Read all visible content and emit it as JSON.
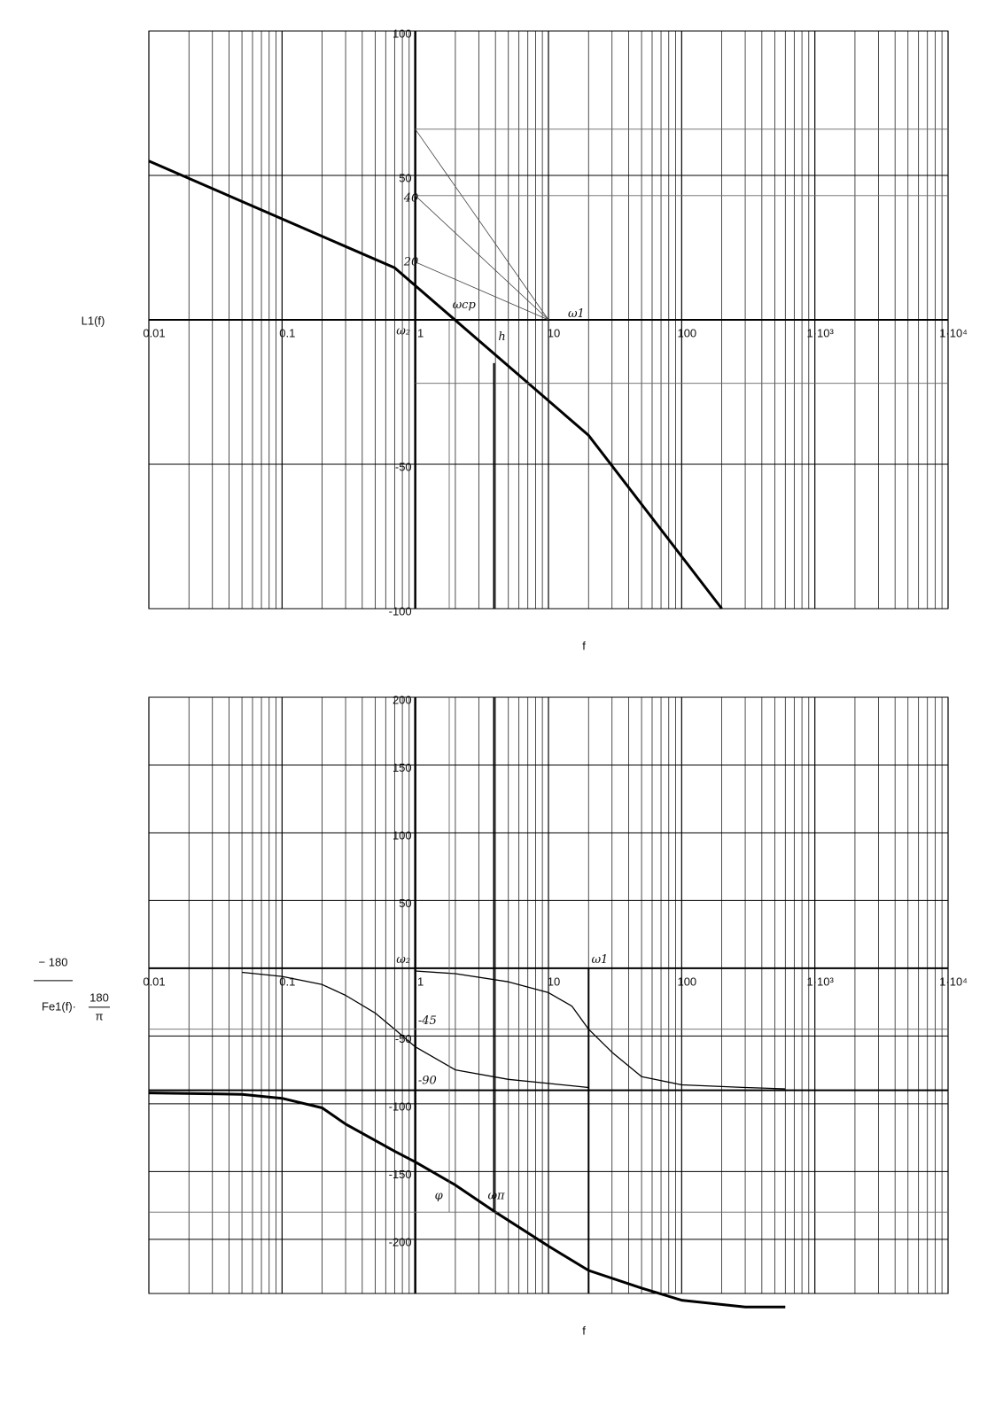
{
  "chart_data": [
    {
      "type": "line",
      "x_log": true,
      "grid": true,
      "xlim": [
        0.01,
        10000
      ],
      "ylim": [
        -100,
        100
      ],
      "xticks": [
        {
          "value": 0.01,
          "label": "0.01"
        },
        {
          "value": 0.1,
          "label": "0.1"
        },
        {
          "value": 1,
          "label": "1"
        },
        {
          "value": 10,
          "label": "10"
        },
        {
          "value": 100,
          "label": "100"
        },
        {
          "value": 1000,
          "label": "1·10³"
        },
        {
          "value": 10000,
          "label": "1·10⁴"
        }
      ],
      "yticks": [
        100,
        50,
        {
          "value": -50,
          "label": "-50"
        },
        {
          "value": -100,
          "label": "-100"
        }
      ],
      "x_label": "f",
      "y_label": [
        "L1(f)"
      ],
      "series": [
        {
          "color": "#000",
          "width": 3,
          "x": [
            0.01,
            0.7,
            20,
            200
          ],
          "values": [
            55,
            18,
            -40,
            -100
          ]
        },
        {
          "color": "#444",
          "width": 0.8,
          "x": [
            1,
            10
          ],
          "values": [
            66,
            0
          ]
        },
        {
          "color": "#444",
          "width": 0.8,
          "x": [
            1,
            10
          ],
          "values": [
            43,
            0
          ]
        },
        {
          "color": "#444",
          "width": 0.8,
          "x": [
            1,
            10
          ],
          "values": [
            20,
            0
          ]
        },
        {
          "color": "#666",
          "width": 0.8,
          "x": [
            1,
            10000
          ],
          "values": [
            66,
            66
          ]
        },
        {
          "color": "#666",
          "width": 0.8,
          "x": [
            1,
            10000
          ],
          "values": [
            43,
            43
          ]
        },
        {
          "color": "#666",
          "width": 0.8,
          "x": [
            1,
            10000
          ],
          "values": [
            -22,
            -22
          ]
        },
        {
          "color": "#555",
          "width": 0.8,
          "x": [
            1.8,
            1.8
          ],
          "values": [
            0,
            -100
          ]
        },
        {
          "color": "#000",
          "width": 2,
          "x": [
            3.9,
            3.9
          ],
          "values": [
            -15,
            -100
          ]
        }
      ],
      "annotations": [
        {
          "text": "ωср",
          "x": 1.9,
          "y": 5
        },
        {
          "text": "ω₂",
          "x": 0.72,
          "y": -4
        },
        {
          "text": "ω1",
          "x": 14,
          "y": 2
        },
        {
          "text": "40",
          "x": 0.82,
          "y": 42
        },
        {
          "text": "20",
          "x": 0.82,
          "y": 20
        },
        {
          "text": "h",
          "x": 4.2,
          "y": -6
        }
      ]
    },
    {
      "type": "line",
      "x_log": true,
      "grid": true,
      "xlim": [
        0.01,
        10000
      ],
      "ylim": [
        -240,
        200
      ],
      "xticks": [
        {
          "value": 0.01,
          "label": "0.01"
        },
        {
          "value": 0.1,
          "label": "0.1"
        },
        {
          "value": 1,
          "label": "1"
        },
        {
          "value": 10,
          "label": "10"
        },
        {
          "value": 100,
          "label": "100"
        },
        {
          "value": 1000,
          "label": "1·10³"
        },
        {
          "value": 10000,
          "label": "1·10⁴"
        }
      ],
      "yticks": [
        200,
        150,
        100,
        50,
        {
          "value": -50,
          "label": "-50"
        },
        {
          "value": -100,
          "label": "-100"
        },
        {
          "value": -150,
          "label": "-150"
        },
        {
          "value": -200,
          "label": "-200"
        }
      ],
      "x_label": "f",
      "y_label": [
        "− 180",
        "Fe1(f)·",
        "180",
        "π"
      ],
      "series": [
        {
          "color": "#000",
          "width": 1.3,
          "x": [
            0.05,
            0.1,
            0.2,
            0.3,
            0.5,
            0.7,
            1,
            2,
            5,
            10,
            20
          ],
          "values": [
            -3,
            -6,
            -12,
            -20,
            -33,
            -45,
            -58,
            -75,
            -82,
            -85,
            -88
          ]
        },
        {
          "color": "#000",
          "width": 1.3,
          "x": [
            1,
            2,
            5,
            10,
            15,
            20,
            30,
            50,
            100,
            300,
            600
          ],
          "values": [
            -2,
            -4,
            -10,
            -18,
            -28,
            -45,
            -62,
            -80,
            -86,
            -88,
            -89
          ]
        },
        {
          "color": "#000",
          "width": 3,
          "x": [
            0.01,
            0.05,
            0.1,
            0.2,
            0.3,
            0.7,
            1,
            2,
            4,
            10,
            20,
            50,
            100,
            300,
            600
          ],
          "values": [
            -92,
            -93,
            -96,
            -103,
            -115,
            -135,
            -143,
            -160,
            -180,
            -205,
            -223,
            -236,
            -245,
            -250,
            -250
          ]
        },
        {
          "color": "#000",
          "width": 2,
          "x": [
            0.01,
            10000
          ],
          "values": [
            -90,
            -90
          ]
        },
        {
          "color": "#666",
          "width": 0.8,
          "x": [
            0.01,
            10000
          ],
          "values": [
            -45,
            -45
          ]
        },
        {
          "color": "#666",
          "width": 0.8,
          "x": [
            0.01,
            10000
          ],
          "values": [
            -180,
            -180
          ]
        },
        {
          "color": "#000",
          "width": 2,
          "x": [
            20,
            20
          ],
          "values": [
            0,
            -240
          ]
        },
        {
          "color": "#555",
          "width": 0.8,
          "x": [
            1.8,
            1.8
          ],
          "values": [
            200,
            -180
          ]
        },
        {
          "color": "#000",
          "width": 2,
          "x": [
            3.9,
            3.9
          ],
          "values": [
            200,
            -180
          ]
        }
      ],
      "annotations": [
        {
          "text": "ω1",
          "x": 21,
          "y": 6
        },
        {
          "text": "ω₂",
          "x": 0.72,
          "y": 6
        },
        {
          "text": "-45",
          "x": 1.05,
          "y": -39
        },
        {
          "text": "-90",
          "x": 1.05,
          "y": -83
        },
        {
          "text": "φ",
          "x": 1.4,
          "y": -168
        },
        {
          "text": "ωπ",
          "x": 3.5,
          "y": -168
        }
      ]
    }
  ]
}
